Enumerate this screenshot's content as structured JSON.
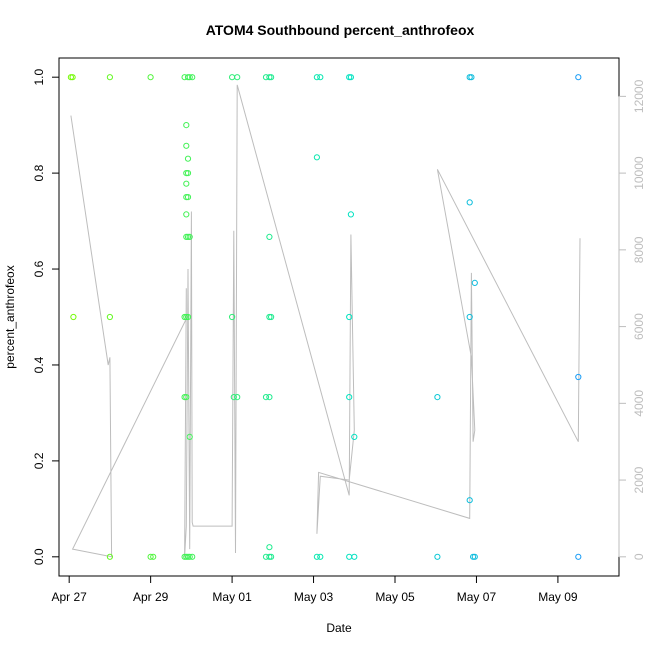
{
  "chart_data": {
    "type": "scatter",
    "title": "ATOM4 Southbound percent_anthrofeox",
    "xlabel": "Date",
    "ylabel": "percent_anthrofeox",
    "x_axis": {
      "min": "2023-04-26T18:00",
      "max": "2023-05-10T12:00",
      "ticks": [
        {
          "value": "2023-04-27",
          "label": "Apr 27"
        },
        {
          "value": "2023-04-29",
          "label": "Apr 29"
        },
        {
          "value": "2023-05-01",
          "label": "May 01"
        },
        {
          "value": "2023-05-03",
          "label": "May 03"
        },
        {
          "value": "2023-05-05",
          "label": "May 05"
        },
        {
          "value": "2023-05-07",
          "label": "May 07"
        },
        {
          "value": "2023-05-09",
          "label": "May 09"
        }
      ]
    },
    "y_axis": {
      "min": -0.04,
      "max": 1.04,
      "ticks": [
        {
          "value": 0.0,
          "label": "0.0"
        },
        {
          "value": 0.2,
          "label": "0.2"
        },
        {
          "value": 0.4,
          "label": "0.4"
        },
        {
          "value": 0.6,
          "label": "0.6"
        },
        {
          "value": 0.8,
          "label": "0.8"
        },
        {
          "value": 1.0,
          "label": "1.0"
        }
      ]
    },
    "y2_axis": {
      "min": -500,
      "max": 13000,
      "color": "#bdbdbd",
      "ticks": [
        {
          "value": 0,
          "label": "0"
        },
        {
          "value": 2000,
          "label": "2000"
        },
        {
          "value": 4000,
          "label": "4000"
        },
        {
          "value": 6000,
          "label": "6000"
        },
        {
          "value": 8000,
          "label": "8000"
        },
        {
          "value": 10000,
          "label": "10000"
        },
        {
          "value": 12000,
          "label": "12000"
        }
      ]
    },
    "grid": false,
    "colors": {
      "line": "#bdbdbd",
      "start": "#7cfc00",
      "end": "#1e90ff"
    },
    "points": [
      {
        "x": "2023-04-27T01:00",
        "y": 1.0
      },
      {
        "x": "2023-04-27T02:00",
        "y": 1.0
      },
      {
        "x": "2023-04-27T02:30",
        "y": 0.5
      },
      {
        "x": "2023-04-28T00:00",
        "y": 1.0
      },
      {
        "x": "2023-04-28T00:00",
        "y": 0.5
      },
      {
        "x": "2023-04-28T00:00",
        "y": 0.0
      },
      {
        "x": "2023-04-29T00:00",
        "y": 1.0
      },
      {
        "x": "2023-04-29T00:00",
        "y": 0.0
      },
      {
        "x": "2023-04-29T01:30",
        "y": 0.0
      },
      {
        "x": "2023-04-29T20:00",
        "y": 1.0
      },
      {
        "x": "2023-04-29T20:00",
        "y": 0.5
      },
      {
        "x": "2023-04-29T20:00",
        "y": 0.333
      },
      {
        "x": "2023-04-29T20:00",
        "y": 0.0
      },
      {
        "x": "2023-04-29T21:00",
        "y": 0.9
      },
      {
        "x": "2023-04-29T21:00",
        "y": 0.857
      },
      {
        "x": "2023-04-29T21:00",
        "y": 0.8
      },
      {
        "x": "2023-04-29T21:00",
        "y": 0.778
      },
      {
        "x": "2023-04-29T21:00",
        "y": 0.75
      },
      {
        "x": "2023-04-29T21:00",
        "y": 0.714
      },
      {
        "x": "2023-04-29T21:00",
        "y": 0.667
      },
      {
        "x": "2023-04-29T21:00",
        "y": 0.5
      },
      {
        "x": "2023-04-29T21:00",
        "y": 0.333
      },
      {
        "x": "2023-04-29T21:00",
        "y": 0.0
      },
      {
        "x": "2023-04-29T22:00",
        "y": 1.0
      },
      {
        "x": "2023-04-29T22:00",
        "y": 0.83
      },
      {
        "x": "2023-04-29T22:00",
        "y": 0.8
      },
      {
        "x": "2023-04-29T22:00",
        "y": 0.75
      },
      {
        "x": "2023-04-29T22:00",
        "y": 0.667
      },
      {
        "x": "2023-04-29T22:00",
        "y": 0.5
      },
      {
        "x": "2023-04-29T22:00",
        "y": 0.0
      },
      {
        "x": "2023-04-29T23:00",
        "y": 1.0
      },
      {
        "x": "2023-04-29T23:00",
        "y": 0.667
      },
      {
        "x": "2023-04-29T23:00",
        "y": 0.25
      },
      {
        "x": "2023-04-29T23:00",
        "y": 0.0
      },
      {
        "x": "2023-04-30T00:30",
        "y": 1.0
      },
      {
        "x": "2023-04-30T00:30",
        "y": 0.0
      },
      {
        "x": "2023-05-01T00:00",
        "y": 1.0
      },
      {
        "x": "2023-05-01T00:00",
        "y": 0.5
      },
      {
        "x": "2023-05-01T01:00",
        "y": 0.333
      },
      {
        "x": "2023-05-01T03:00",
        "y": 1.0
      },
      {
        "x": "2023-05-01T03:00",
        "y": 0.333
      },
      {
        "x": "2023-05-01T20:00",
        "y": 1.0
      },
      {
        "x": "2023-05-01T20:00",
        "y": 0.333
      },
      {
        "x": "2023-05-01T20:00",
        "y": 0.0
      },
      {
        "x": "2023-05-01T22:00",
        "y": 1.0
      },
      {
        "x": "2023-05-01T22:00",
        "y": 0.667
      },
      {
        "x": "2023-05-01T22:00",
        "y": 0.5
      },
      {
        "x": "2023-05-01T22:00",
        "y": 0.333
      },
      {
        "x": "2023-05-01T22:00",
        "y": 0.02
      },
      {
        "x": "2023-05-01T22:00",
        "y": 0.0
      },
      {
        "x": "2023-05-01T23:00",
        "y": 1.0
      },
      {
        "x": "2023-05-01T23:00",
        "y": 0.5
      },
      {
        "x": "2023-05-01T23:00",
        "y": 0.0
      },
      {
        "x": "2023-05-03T02:00",
        "y": 1.0
      },
      {
        "x": "2023-05-03T02:00",
        "y": 0.833
      },
      {
        "x": "2023-05-03T02:00",
        "y": 0.0
      },
      {
        "x": "2023-05-03T04:00",
        "y": 1.0
      },
      {
        "x": "2023-05-03T04:00",
        "y": 0.0
      },
      {
        "x": "2023-05-03T21:00",
        "y": 1.0
      },
      {
        "x": "2023-05-03T21:00",
        "y": 0.5
      },
      {
        "x": "2023-05-03T21:00",
        "y": 0.333
      },
      {
        "x": "2023-05-03T21:00",
        "y": 0.0
      },
      {
        "x": "2023-05-03T22:00",
        "y": 1.0
      },
      {
        "x": "2023-05-03T22:00",
        "y": 0.714
      },
      {
        "x": "2023-05-04T00:00",
        "y": 0.25
      },
      {
        "x": "2023-05-04T00:00",
        "y": 0.0
      },
      {
        "x": "2023-05-06T01:00",
        "y": 0.333
      },
      {
        "x": "2023-05-06T01:00",
        "y": 0.0
      },
      {
        "x": "2023-05-06T20:00",
        "y": 1.0
      },
      {
        "x": "2023-05-06T20:00",
        "y": 0.739
      },
      {
        "x": "2023-05-06T20:00",
        "y": 0.5
      },
      {
        "x": "2023-05-06T20:00",
        "y": 0.118
      },
      {
        "x": "2023-05-06T21:00",
        "y": 1.0
      },
      {
        "x": "2023-05-06T22:00",
        "y": 0.0
      },
      {
        "x": "2023-05-06T23:00",
        "y": 0.0
      },
      {
        "x": "2023-05-06T23:00",
        "y": 0.571
      },
      {
        "x": "2023-05-09T12:00",
        "y": 1.0
      },
      {
        "x": "2023-05-09T12:00",
        "y": 0.375
      },
      {
        "x": "2023-05-09T12:00",
        "y": 0.0
      }
    ],
    "line_series": [
      [
        "2023-04-27T01:00",
        11500
      ],
      [
        "2023-04-27T23:00",
        5000
      ],
      [
        "2023-04-28T00:00",
        5200
      ],
      [
        "2023-04-28T01:00",
        0
      ],
      [
        "2023-04-27T02:00",
        200
      ],
      [
        "2023-04-29T21:00",
        6200
      ],
      [
        "2023-04-29T21:00",
        7000
      ],
      [
        "2023-04-29T20:00",
        0
      ],
      [
        "2023-04-29T21:00",
        800
      ],
      [
        "2023-04-29T22:00",
        7500
      ],
      [
        "2023-04-29T23:00",
        200
      ],
      [
        "2023-04-30T00:00",
        9000
      ],
      [
        "2023-04-30T00:30",
        900
      ],
      [
        "2023-04-30T01:00",
        800
      ],
      [
        "2023-05-01T00:00",
        800
      ],
      [
        "2023-05-01T01:00",
        8500
      ],
      [
        "2023-05-01T02:00",
        100
      ],
      [
        "2023-05-01T03:00",
        12300
      ],
      [
        "2023-05-03T21:00",
        1600
      ],
      [
        "2023-05-03T22:00",
        8400
      ],
      [
        "2023-05-04T00:00",
        3300
      ],
      [
        "2023-05-03T21:00",
        2000
      ],
      [
        "2023-05-03T04:00",
        2100
      ],
      [
        "2023-05-03T02:00",
        600
      ],
      [
        "2023-05-03T03:00",
        2200
      ],
      [
        "2023-05-06T20:00",
        1000
      ],
      [
        "2023-05-06T21:00",
        7400
      ],
      [
        "2023-05-06T22:00",
        3000
      ],
      [
        "2023-05-06T23:00",
        3300
      ],
      [
        "2023-05-06T21:00",
        5200
      ],
      [
        "2023-05-06T01:00",
        10100
      ],
      [
        "2023-05-09T12:00",
        3000
      ],
      [
        "2023-05-09T13:00",
        8300
      ]
    ]
  }
}
